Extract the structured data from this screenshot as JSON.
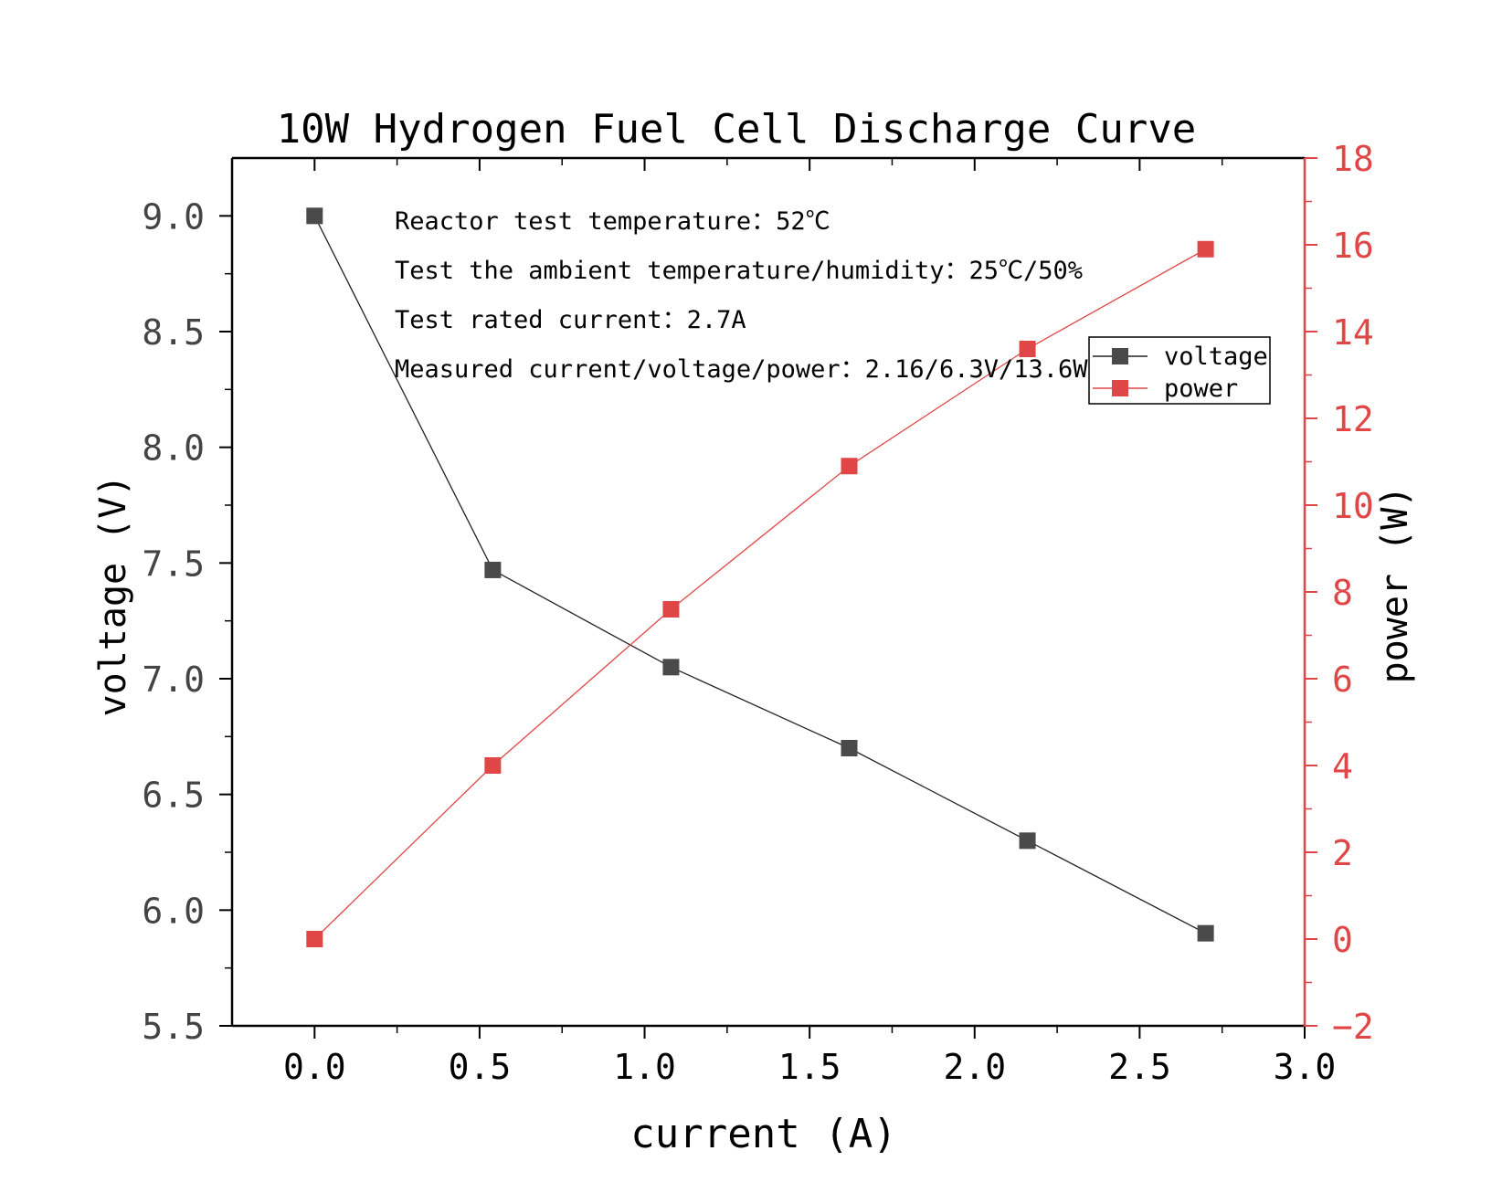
{
  "chart_data": {
    "type": "line",
    "title": "10W Hydrogen Fuel Cell Discharge Curve",
    "xlabel": "current (A)",
    "ylabel_left": "voltage (V)",
    "ylabel_right": "power (W)",
    "xlim": [
      -0.25,
      3.0
    ],
    "ylim_left": [
      5.5,
      9.25
    ],
    "ylim_right": [
      -2,
      18
    ],
    "x_ticks": [
      "0.0",
      "0.5",
      "1.0",
      "1.5",
      "2.0",
      "2.5",
      "3.0"
    ],
    "x_tick_values": [
      0,
      0.5,
      1.0,
      1.5,
      2.0,
      2.5,
      3.0
    ],
    "y_left_ticks": [
      "5.5",
      "6.0",
      "6.5",
      "7.0",
      "7.5",
      "8.0",
      "8.5",
      "9.0"
    ],
    "y_left_tick_values": [
      5.5,
      6.0,
      6.5,
      7.0,
      7.5,
      8.0,
      8.5,
      9.0
    ],
    "y_right_ticks": [
      "−2",
      "0",
      "2",
      "4",
      "6",
      "8",
      "10",
      "12",
      "14",
      "16",
      "18"
    ],
    "y_right_tick_values": [
      -2,
      0,
      2,
      4,
      6,
      8,
      10,
      12,
      14,
      16,
      18
    ],
    "x": [
      0.0,
      0.54,
      1.08,
      1.62,
      2.16,
      2.7
    ],
    "series": [
      {
        "name": "voltage",
        "axis": "left",
        "color": "#4a4a4a",
        "line_color": "#222222",
        "values": [
          9.0,
          7.47,
          7.05,
          6.7,
          6.3,
          5.9
        ]
      },
      {
        "name": "power",
        "axis": "right",
        "color": "#e04646",
        "line_color": "#e04646",
        "values": [
          0.0,
          4.0,
          7.6,
          10.9,
          13.6,
          15.9
        ]
      }
    ],
    "legend": [
      "voltage",
      "power"
    ],
    "legend_position": "upper-right",
    "annotations": [
      "Reactor test temperature：52℃",
      "Test the ambient temperature/humidity：25℃/50%",
      "Test rated current：2.7A",
      "Measured current/voltage/power：2.16/6.3V/13.6W"
    ],
    "grid": false,
    "left_axis_color": "#000000",
    "right_axis_color": "#e04646"
  }
}
